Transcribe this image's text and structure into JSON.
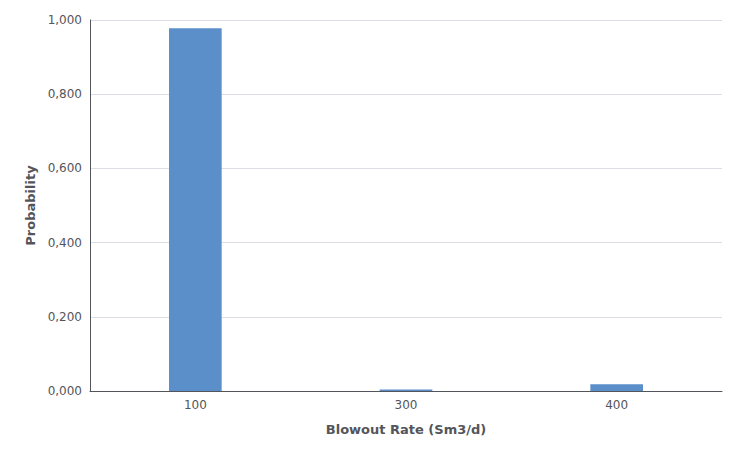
{
  "chart_data": {
    "type": "bar",
    "categories": [
      "100",
      "300",
      "400"
    ],
    "values": [
      0.978,
      0.004,
      0.018
    ],
    "color": "#5b8fc9",
    "xlabel": "Blowout Rate (Sm3/d)",
    "ylabel": "Probability",
    "ylim": [
      0,
      1
    ],
    "yticks": [
      {
        "value": 0,
        "label": "0,000"
      },
      {
        "value": 0.2,
        "label": "0,200"
      },
      {
        "value": 0.4,
        "label": "0,400"
      },
      {
        "value": 0.6,
        "label": "0,600"
      },
      {
        "value": 0.8,
        "label": "0,800"
      },
      {
        "value": 1,
        "label": "1,000"
      }
    ],
    "grid": true
  }
}
